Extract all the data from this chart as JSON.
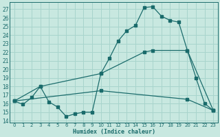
{
  "bg_color": "#c8e8e0",
  "grid_color": "#a8d4cc",
  "line_color": "#1a6b6b",
  "xlim": [
    -0.5,
    23.5
  ],
  "ylim": [
    13.8,
    27.8
  ],
  "yticks": [
    14,
    15,
    16,
    17,
    18,
    19,
    20,
    21,
    22,
    23,
    24,
    25,
    26,
    27
  ],
  "xticks": [
    0,
    1,
    2,
    3,
    4,
    5,
    6,
    7,
    8,
    9,
    10,
    11,
    12,
    13,
    14,
    15,
    16,
    17,
    18,
    19,
    20,
    21,
    22,
    23
  ],
  "xlabel": "Humidex (Indice chaleur)",
  "line1_x": [
    0,
    1,
    2,
    3,
    4,
    5,
    6,
    7,
    8,
    9,
    10,
    11,
    12,
    13,
    14,
    15,
    16,
    17,
    18,
    19,
    20,
    21,
    22,
    23
  ],
  "line1_y": [
    16.3,
    15.9,
    16.7,
    18.0,
    16.2,
    15.6,
    14.5,
    14.8,
    15.0,
    15.0,
    19.5,
    21.3,
    23.3,
    24.5,
    25.1,
    27.2,
    27.3,
    26.2,
    25.7,
    25.5,
    22.2,
    19.0,
    16.0,
    15.2
  ],
  "line2_x": [
    0,
    3,
    10,
    15,
    16,
    20,
    23
  ],
  "line2_y": [
    16.3,
    18.0,
    19.5,
    22.0,
    22.2,
    22.2,
    15.2
  ],
  "line3_x": [
    0,
    10,
    20,
    23
  ],
  "line3_y": [
    16.3,
    17.5,
    16.5,
    15.2
  ],
  "xlabel_fontsize": 6,
  "tick_fontsize": 5,
  "ytick_fontsize": 5.5,
  "lw": 0.9,
  "ms": 2.2
}
